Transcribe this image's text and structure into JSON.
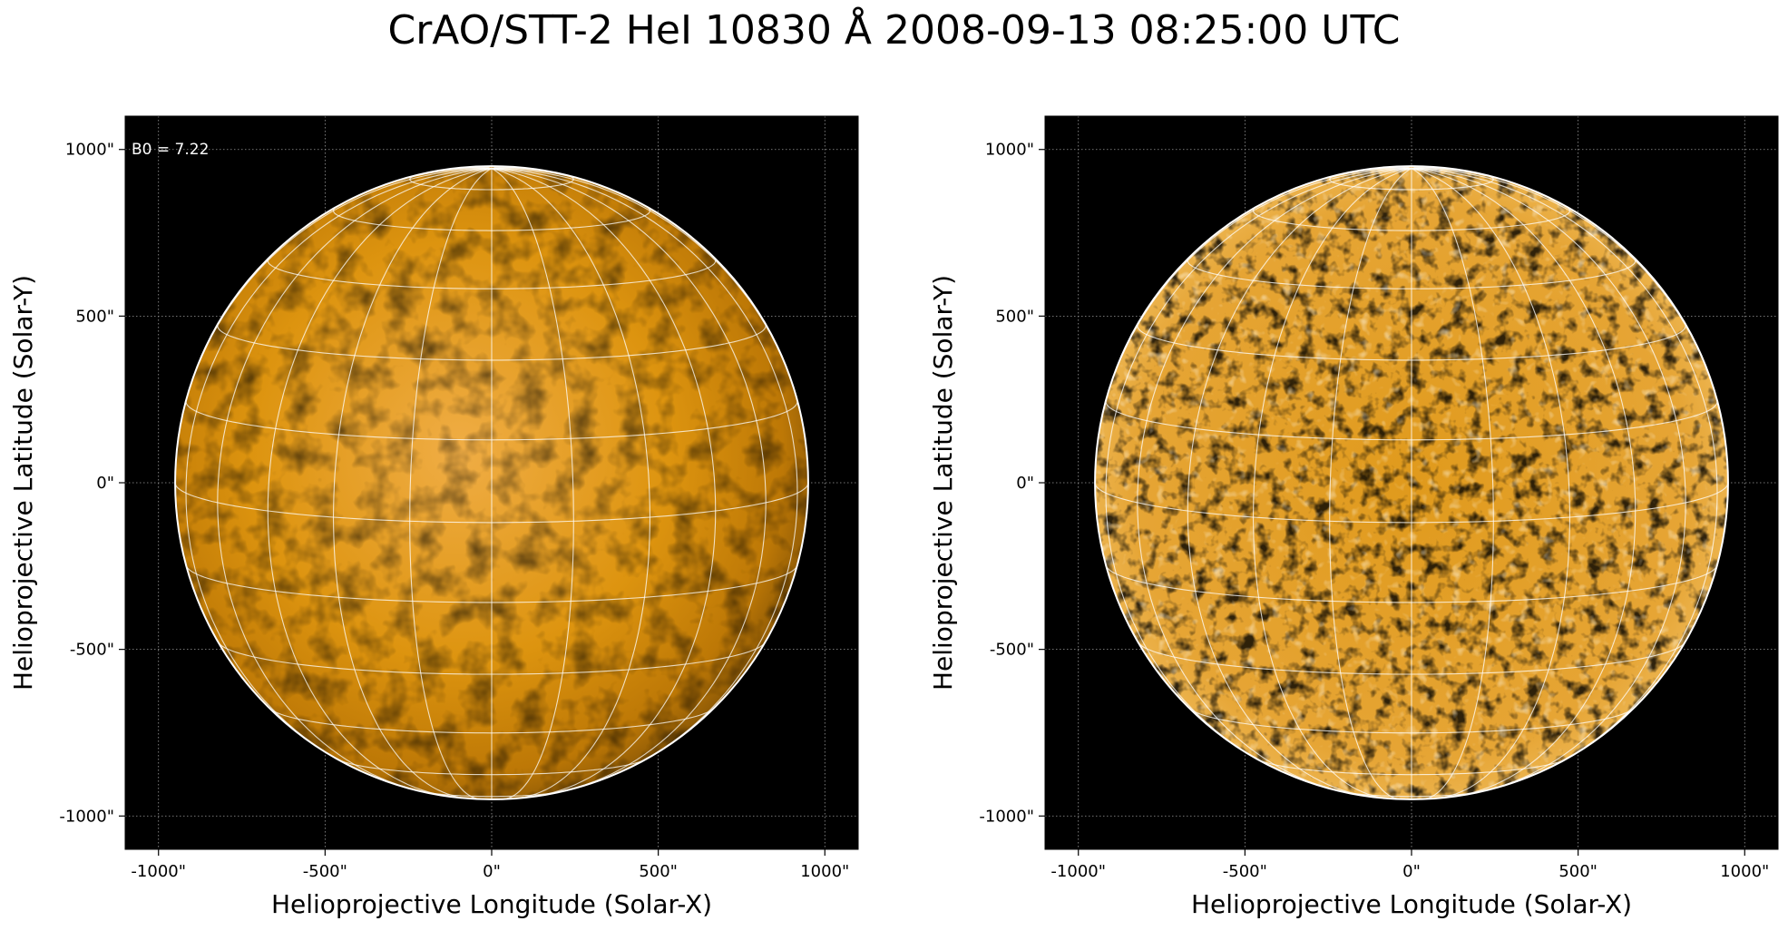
{
  "figure": {
    "title": "CrAO/STT-2 HeI 10830 Å 2008-09-13 08:25:00 UTC"
  },
  "colors": {
    "background": "#000000",
    "disk_base": "#d98c0a",
    "disk_highlight": "#f2b855",
    "grid_lines": "#ffffff",
    "limb": "#ffffff"
  },
  "panels": [
    {
      "id": "left",
      "xlabel": "Helioprojective Longitude (Solar-X)",
      "ylabel": "Helioprojective Latitude (Solar-Y)",
      "annotation": "B0 = 7.22",
      "x_ticks": [
        "-1000\"",
        "-500\"",
        "0\"",
        "500\"",
        "1000\""
      ],
      "y_ticks": [
        "1000\"",
        "500\"",
        "0\"",
        "-500\"",
        "-1000\""
      ],
      "xlim": [
        -1100,
        1100
      ],
      "ylim": [
        -1100,
        1100
      ],
      "style": "smooth"
    },
    {
      "id": "right",
      "xlabel": "Helioprojective Longitude (Solar-X)",
      "ylabel": "Helioprojective Latitude (Solar-Y)",
      "annotation": "",
      "x_ticks": [
        "-1000\"",
        "-500\"",
        "0\"",
        "500\"",
        "1000\""
      ],
      "y_ticks": [
        "1000\"",
        "500\"",
        "0\"",
        "-500\"",
        "-1000\""
      ],
      "xlim": [
        -1100,
        1100
      ],
      "ylim": [
        -1100,
        1100
      ],
      "style": "contrast"
    }
  ],
  "solar": {
    "radius_arcsec": 950,
    "b0_deg": 7.22,
    "grid_spacing_deg": 15
  }
}
